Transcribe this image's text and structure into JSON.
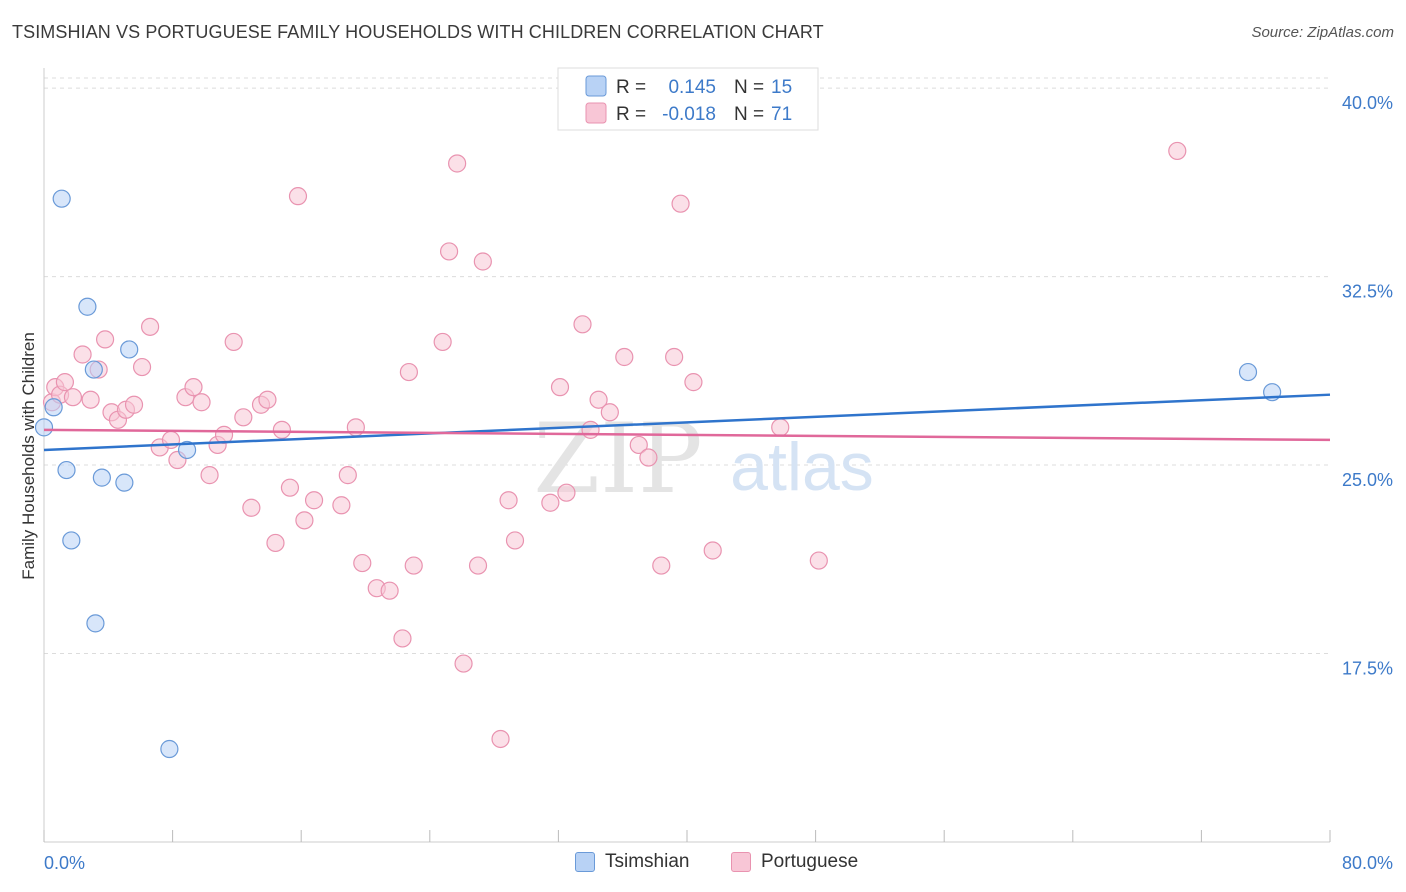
{
  "header": {
    "title": "TSIMSHIAN VS PORTUGUESE FAMILY HOUSEHOLDS WITH CHILDREN CORRELATION CHART",
    "source": "Source: ZipAtlas.com"
  },
  "watermark": {
    "zip": "ZIP",
    "atlas": "atlas"
  },
  "colors": {
    "tsimshian_fill": "#b8d2f5",
    "tsimshian_stroke": "#6a9ad8",
    "tsimshian_line": "#2f74cc",
    "portuguese_fill": "#f8c6d6",
    "portuguese_stroke": "#e993b0",
    "portuguese_line": "#e0689a",
    "tick_text": "#3d7ac9"
  },
  "legend": {
    "rows": [
      {
        "r_label": "R =",
        "r_value": "0.145",
        "n_label": "N =",
        "n_value": "15"
      },
      {
        "r_label": "R =",
        "r_value": "-0.018",
        "n_label": "N =",
        "n_value": "71"
      }
    ]
  },
  "bottom_legend": {
    "items": [
      "Tsimshian",
      "Portuguese"
    ]
  },
  "chart_data": {
    "type": "scatter",
    "title": "TSIMSHIAN VS PORTUGUESE FAMILY HOUSEHOLDS WITH CHILDREN CORRELATION CHART",
    "xlabel": "",
    "ylabel": "Family Households with Children",
    "xlim": [
      0,
      80
    ],
    "ylim": [
      10,
      40.8
    ],
    "x_tick_labels": [
      "0.0%",
      "80.0%"
    ],
    "y_ticks": [
      17.5,
      25.0,
      32.5,
      40.0
    ],
    "y_tick_labels": [
      "17.5%",
      "25.0%",
      "32.5%",
      "40.0%"
    ],
    "grid": "horizontal dashed",
    "series": [
      {
        "name": "Tsimshian",
        "r": 0.145,
        "n": 15,
        "trend": {
          "x": [
            0,
            80
          ],
          "y": [
            25.6,
            27.8
          ]
        },
        "points": [
          [
            0.0,
            26.5
          ],
          [
            0.6,
            27.3
          ],
          [
            1.1,
            35.6
          ],
          [
            1.4,
            24.8
          ],
          [
            1.7,
            22.0
          ],
          [
            2.7,
            31.3
          ],
          [
            3.1,
            28.8
          ],
          [
            3.2,
            18.7
          ],
          [
            3.6,
            24.5
          ],
          [
            5.0,
            24.3
          ],
          [
            5.3,
            29.6
          ],
          [
            7.8,
            13.7
          ],
          [
            8.9,
            25.6
          ],
          [
            74.9,
            28.7
          ],
          [
            76.4,
            27.9
          ]
        ]
      },
      {
        "name": "Portuguese",
        "r": -0.018,
        "n": 71,
        "trend": {
          "x": [
            0,
            80
          ],
          "y": [
            26.4,
            26.0
          ]
        },
        "points": [
          [
            0.5,
            27.5
          ],
          [
            0.7,
            28.1
          ],
          [
            1.0,
            27.8
          ],
          [
            1.3,
            28.3
          ],
          [
            1.8,
            27.7
          ],
          [
            2.4,
            29.4
          ],
          [
            2.9,
            27.6
          ],
          [
            3.4,
            28.8
          ],
          [
            3.8,
            30.0
          ],
          [
            4.2,
            27.1
          ],
          [
            4.6,
            26.8
          ],
          [
            5.1,
            27.2
          ],
          [
            5.6,
            27.4
          ],
          [
            6.1,
            28.9
          ],
          [
            6.6,
            30.5
          ],
          [
            7.2,
            25.7
          ],
          [
            7.9,
            26.0
          ],
          [
            8.3,
            25.2
          ],
          [
            8.8,
            27.7
          ],
          [
            9.3,
            28.1
          ],
          [
            9.8,
            27.5
          ],
          [
            10.3,
            24.6
          ],
          [
            10.8,
            25.8
          ],
          [
            11.2,
            26.2
          ],
          [
            11.8,
            29.9
          ],
          [
            12.4,
            26.9
          ],
          [
            12.9,
            23.3
          ],
          [
            13.5,
            27.4
          ],
          [
            13.9,
            27.6
          ],
          [
            14.4,
            21.9
          ],
          [
            14.8,
            26.4
          ],
          [
            15.3,
            24.1
          ],
          [
            15.8,
            35.7
          ],
          [
            16.2,
            22.8
          ],
          [
            16.8,
            23.6
          ],
          [
            18.5,
            23.4
          ],
          [
            18.9,
            24.6
          ],
          [
            19.4,
            26.5
          ],
          [
            19.8,
            21.1
          ],
          [
            20.7,
            20.1
          ],
          [
            21.5,
            20.0
          ],
          [
            22.3,
            18.1
          ],
          [
            22.7,
            28.7
          ],
          [
            23.0,
            21.0
          ],
          [
            24.8,
            29.9
          ],
          [
            25.2,
            33.5
          ],
          [
            25.7,
            37.0
          ],
          [
            26.1,
            17.1
          ],
          [
            27.0,
            21.0
          ],
          [
            27.3,
            33.1
          ],
          [
            28.4,
            14.1
          ],
          [
            28.9,
            23.6
          ],
          [
            29.3,
            22.0
          ],
          [
            31.5,
            23.5
          ],
          [
            32.1,
            28.1
          ],
          [
            32.5,
            23.9
          ],
          [
            33.5,
            30.6
          ],
          [
            34.0,
            26.4
          ],
          [
            34.5,
            27.6
          ],
          [
            35.2,
            27.1
          ],
          [
            36.1,
            29.3
          ],
          [
            37.0,
            25.8
          ],
          [
            37.6,
            25.3
          ],
          [
            38.4,
            21.0
          ],
          [
            39.2,
            29.3
          ],
          [
            39.6,
            35.4
          ],
          [
            40.4,
            28.3
          ],
          [
            41.6,
            21.6
          ],
          [
            45.8,
            26.5
          ],
          [
            48.2,
            21.2
          ],
          [
            70.5,
            37.5
          ]
        ]
      }
    ]
  }
}
